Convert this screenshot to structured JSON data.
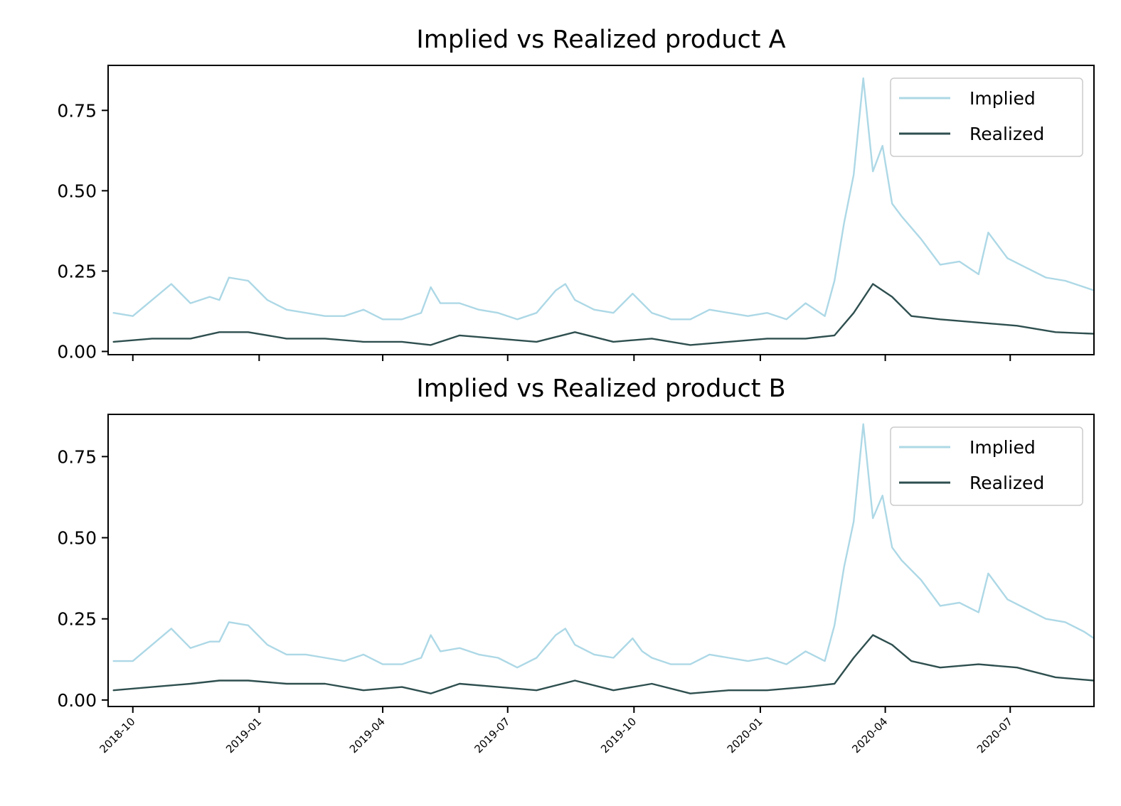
{
  "chart_data": [
    {
      "type": "line",
      "title": "Implied vs Realized product A",
      "xlabel": "",
      "ylabel": "",
      "x_range": [
        "2018-09-13",
        "2020-08-31"
      ],
      "ylim": [
        -0.01,
        0.89
      ],
      "y_ticks": [
        0.0,
        0.25,
        0.5,
        0.75
      ],
      "y_tick_labels": [
        "0.00",
        "0.25",
        "0.50",
        "0.75"
      ],
      "x_tick_labels": [],
      "legend_position": "upper right",
      "series": [
        {
          "name": "Implied",
          "color": "#add8e6",
          "x": [
            "2018-09-17",
            "2018-10-01",
            "2018-10-15",
            "2018-10-29",
            "2018-11-12",
            "2018-11-26",
            "2018-12-03",
            "2018-12-10",
            "2018-12-24",
            "2019-01-07",
            "2019-01-21",
            "2019-02-04",
            "2019-02-18",
            "2019-03-04",
            "2019-03-18",
            "2019-04-01",
            "2019-04-15",
            "2019-04-29",
            "2019-05-06",
            "2019-05-13",
            "2019-05-27",
            "2019-06-10",
            "2019-06-24",
            "2019-07-08",
            "2019-07-22",
            "2019-08-05",
            "2019-08-12",
            "2019-08-19",
            "2019-09-02",
            "2019-09-16",
            "2019-09-30",
            "2019-10-07",
            "2019-10-14",
            "2019-10-28",
            "2019-11-11",
            "2019-11-25",
            "2019-12-09",
            "2019-12-23",
            "2020-01-06",
            "2020-01-20",
            "2020-02-03",
            "2020-02-17",
            "2020-02-24",
            "2020-03-02",
            "2020-03-09",
            "2020-03-16",
            "2020-03-23",
            "2020-03-30",
            "2020-04-06",
            "2020-04-13",
            "2020-04-27",
            "2020-05-11",
            "2020-05-25",
            "2020-06-08",
            "2020-06-15",
            "2020-06-29",
            "2020-07-13",
            "2020-07-27",
            "2020-08-10",
            "2020-08-24",
            "2020-08-31"
          ],
          "y": [
            0.12,
            0.11,
            0.16,
            0.21,
            0.15,
            0.17,
            0.16,
            0.23,
            0.22,
            0.16,
            0.13,
            0.12,
            0.11,
            0.11,
            0.13,
            0.1,
            0.1,
            0.12,
            0.2,
            0.15,
            0.15,
            0.13,
            0.12,
            0.1,
            0.12,
            0.19,
            0.21,
            0.16,
            0.13,
            0.12,
            0.18,
            0.15,
            0.12,
            0.1,
            0.1,
            0.13,
            0.12,
            0.11,
            0.12,
            0.1,
            0.15,
            0.11,
            0.22,
            0.4,
            0.55,
            0.85,
            0.56,
            0.64,
            0.46,
            0.42,
            0.35,
            0.27,
            0.28,
            0.24,
            0.37,
            0.29,
            0.26,
            0.23,
            0.22,
            0.2,
            0.19
          ]
        },
        {
          "name": "Realized",
          "color": "#2f4f4f",
          "x": [
            "2018-09-17",
            "2018-10-15",
            "2018-11-12",
            "2018-12-03",
            "2018-12-24",
            "2019-01-21",
            "2019-02-18",
            "2019-03-18",
            "2019-04-15",
            "2019-05-06",
            "2019-05-27",
            "2019-06-24",
            "2019-07-22",
            "2019-08-19",
            "2019-09-16",
            "2019-10-14",
            "2019-11-11",
            "2019-12-09",
            "2020-01-06",
            "2020-02-03",
            "2020-02-24",
            "2020-03-09",
            "2020-03-23",
            "2020-04-06",
            "2020-04-20",
            "2020-05-11",
            "2020-06-08",
            "2020-07-06",
            "2020-08-03",
            "2020-08-31"
          ],
          "y": [
            0.03,
            0.04,
            0.04,
            0.06,
            0.06,
            0.04,
            0.04,
            0.03,
            0.03,
            0.02,
            0.05,
            0.04,
            0.03,
            0.06,
            0.03,
            0.04,
            0.02,
            0.03,
            0.04,
            0.04,
            0.05,
            0.12,
            0.21,
            0.17,
            0.11,
            0.1,
            0.09,
            0.08,
            0.06,
            0.055
          ]
        }
      ]
    },
    {
      "type": "line",
      "title": "Implied vs Realized product B",
      "xlabel": "",
      "ylabel": "",
      "x_range": [
        "2018-09-13",
        "2020-08-31"
      ],
      "ylim": [
        -0.02,
        0.88
      ],
      "y_ticks": [
        0.0,
        0.25,
        0.5,
        0.75
      ],
      "y_tick_labels": [
        "0.00",
        "0.25",
        "0.50",
        "0.75"
      ],
      "x_tick_labels": [
        "2018-10",
        "2019-01",
        "2019-04",
        "2019-07",
        "2019-10",
        "2020-01",
        "2020-04",
        "2020-07"
      ],
      "legend_position": "upper right",
      "series": [
        {
          "name": "Implied",
          "color": "#add8e6",
          "x": [
            "2018-09-17",
            "2018-10-01",
            "2018-10-15",
            "2018-10-29",
            "2018-11-12",
            "2018-11-26",
            "2018-12-03",
            "2018-12-10",
            "2018-12-24",
            "2019-01-07",
            "2019-01-21",
            "2019-02-04",
            "2019-02-18",
            "2019-03-04",
            "2019-03-18",
            "2019-04-01",
            "2019-04-15",
            "2019-04-29",
            "2019-05-06",
            "2019-05-13",
            "2019-05-27",
            "2019-06-10",
            "2019-06-24",
            "2019-07-08",
            "2019-07-22",
            "2019-08-05",
            "2019-08-12",
            "2019-08-19",
            "2019-09-02",
            "2019-09-16",
            "2019-09-30",
            "2019-10-07",
            "2019-10-14",
            "2019-10-28",
            "2019-11-11",
            "2019-11-25",
            "2019-12-09",
            "2019-12-23",
            "2020-01-06",
            "2020-01-20",
            "2020-02-03",
            "2020-02-17",
            "2020-02-24",
            "2020-03-02",
            "2020-03-09",
            "2020-03-16",
            "2020-03-23",
            "2020-03-30",
            "2020-04-06",
            "2020-04-13",
            "2020-04-27",
            "2020-05-11",
            "2020-05-25",
            "2020-06-08",
            "2020-06-15",
            "2020-06-29",
            "2020-07-13",
            "2020-07-27",
            "2020-08-10",
            "2020-08-24",
            "2020-08-31"
          ],
          "y": [
            0.12,
            0.12,
            0.17,
            0.22,
            0.16,
            0.18,
            0.18,
            0.24,
            0.23,
            0.17,
            0.14,
            0.14,
            0.13,
            0.12,
            0.14,
            0.11,
            0.11,
            0.13,
            0.2,
            0.15,
            0.16,
            0.14,
            0.13,
            0.1,
            0.13,
            0.2,
            0.22,
            0.17,
            0.14,
            0.13,
            0.19,
            0.15,
            0.13,
            0.11,
            0.11,
            0.14,
            0.13,
            0.12,
            0.13,
            0.11,
            0.15,
            0.12,
            0.23,
            0.41,
            0.55,
            0.85,
            0.56,
            0.63,
            0.47,
            0.43,
            0.37,
            0.29,
            0.3,
            0.27,
            0.39,
            0.31,
            0.28,
            0.25,
            0.24,
            0.21,
            0.19
          ]
        },
        {
          "name": "Realized",
          "color": "#2f4f4f",
          "x": [
            "2018-09-17",
            "2018-10-15",
            "2018-11-12",
            "2018-12-03",
            "2018-12-24",
            "2019-01-21",
            "2019-02-18",
            "2019-03-18",
            "2019-04-15",
            "2019-05-06",
            "2019-05-27",
            "2019-06-24",
            "2019-07-22",
            "2019-08-19",
            "2019-09-16",
            "2019-10-14",
            "2019-11-11",
            "2019-12-09",
            "2020-01-06",
            "2020-02-03",
            "2020-02-24",
            "2020-03-09",
            "2020-03-23",
            "2020-04-06",
            "2020-04-20",
            "2020-05-11",
            "2020-06-08",
            "2020-07-06",
            "2020-08-03",
            "2020-08-31"
          ],
          "y": [
            0.03,
            0.04,
            0.05,
            0.06,
            0.06,
            0.05,
            0.05,
            0.03,
            0.04,
            0.02,
            0.05,
            0.04,
            0.03,
            0.06,
            0.03,
            0.05,
            0.02,
            0.03,
            0.03,
            0.04,
            0.05,
            0.13,
            0.2,
            0.17,
            0.12,
            0.1,
            0.11,
            0.1,
            0.07,
            0.06
          ]
        }
      ]
    }
  ]
}
